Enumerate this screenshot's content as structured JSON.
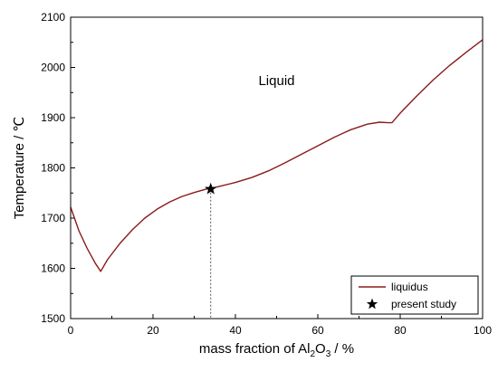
{
  "chart_data": {
    "type": "line",
    "title": "",
    "xlabel": {
      "prefix": "mass fraction of Al",
      "sub1": "2",
      "mid": "O",
      "sub2": "3",
      "suffix": " / %"
    },
    "ylabel": "Temperature / ℃",
    "xlim": [
      0,
      100
    ],
    "ylim": [
      1500,
      2100
    ],
    "xticks": [
      0,
      20,
      40,
      60,
      80,
      100
    ],
    "yticks": [
      1500,
      1600,
      1700,
      1800,
      1900,
      2000,
      2100
    ],
    "xtick_labels": [
      "0",
      "20",
      "40",
      "60",
      "80",
      "100"
    ],
    "ytick_labels": [
      "1500",
      "1600",
      "1700",
      "1800",
      "1900",
      "2000",
      "2100"
    ],
    "grid": false,
    "legend_position": "bottom-right",
    "series": [
      {
        "name": "liquidus",
        "color": "#8b1a1a",
        "x": [
          0,
          2,
          4,
          6,
          7.3,
          9,
          12,
          15,
          18,
          21,
          24,
          27,
          30,
          33,
          34,
          36,
          40,
          44,
          48,
          52,
          56,
          60,
          64,
          68,
          72,
          75,
          77,
          78,
          80,
          84,
          88,
          92,
          96,
          100
        ],
        "y": [
          1722,
          1675,
          1640,
          1610,
          1594,
          1618,
          1650,
          1677,
          1700,
          1718,
          1732,
          1743,
          1751,
          1758,
          1759,
          1763,
          1771,
          1781,
          1794,
          1810,
          1827,
          1844,
          1861,
          1876,
          1887,
          1891,
          1890,
          1890,
          1909,
          1943,
          1975,
          2004,
          2030,
          2055
        ]
      }
    ],
    "markers": [
      {
        "name": "present study",
        "symbol": "star",
        "x": 34,
        "y": 1758,
        "dropline_to": 1500
      }
    ],
    "annotations": [
      {
        "text": "Liquid",
        "x": 50,
        "y": 1965
      }
    ]
  }
}
